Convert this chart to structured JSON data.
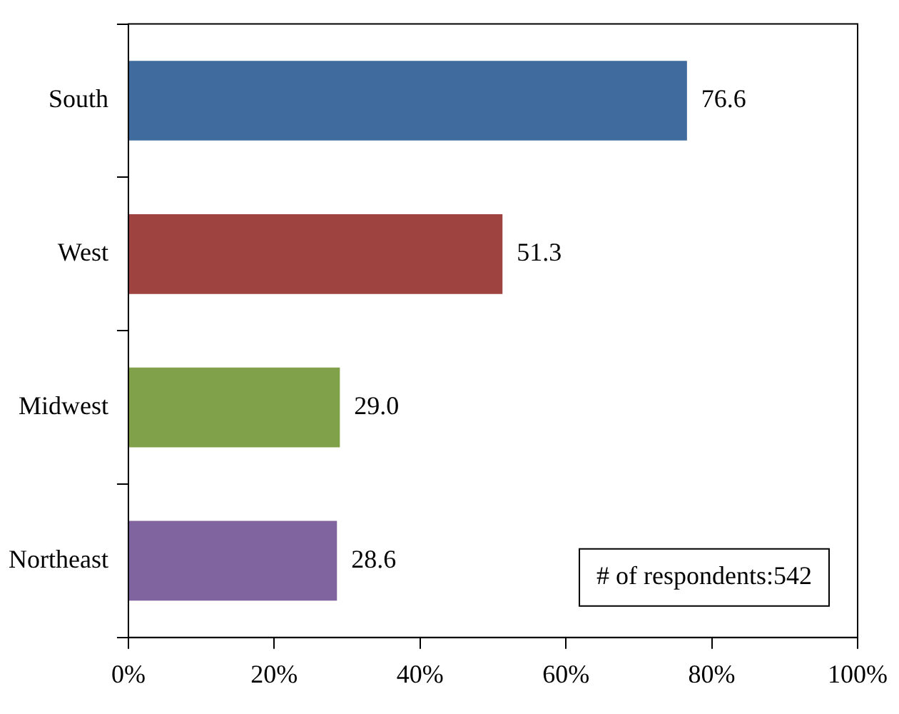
{
  "chart_data": {
    "type": "bar",
    "orientation": "horizontal",
    "categories": [
      "South",
      "West",
      "Midwest",
      "Northeast"
    ],
    "values": [
      76.6,
      51.3,
      29.0,
      28.6
    ],
    "colors": [
      "#3f6b9f",
      "#9e4340",
      "#81a04a",
      "#8064a0"
    ],
    "xlim": [
      0,
      100
    ],
    "xticks": [
      {
        "value": 0,
        "label": "0%"
      },
      {
        "value": 20,
        "label": "20%"
      },
      {
        "value": 40,
        "label": "40%"
      },
      {
        "value": 60,
        "label": "60%"
      },
      {
        "value": 80,
        "label": "80%"
      },
      {
        "value": 100,
        "label": "100%"
      }
    ],
    "value_labels": [
      "76.6",
      "51.3",
      "29.0",
      "28.6"
    ],
    "grid": false,
    "legend": false,
    "annotations": [
      "# of respondents:542"
    ]
  }
}
